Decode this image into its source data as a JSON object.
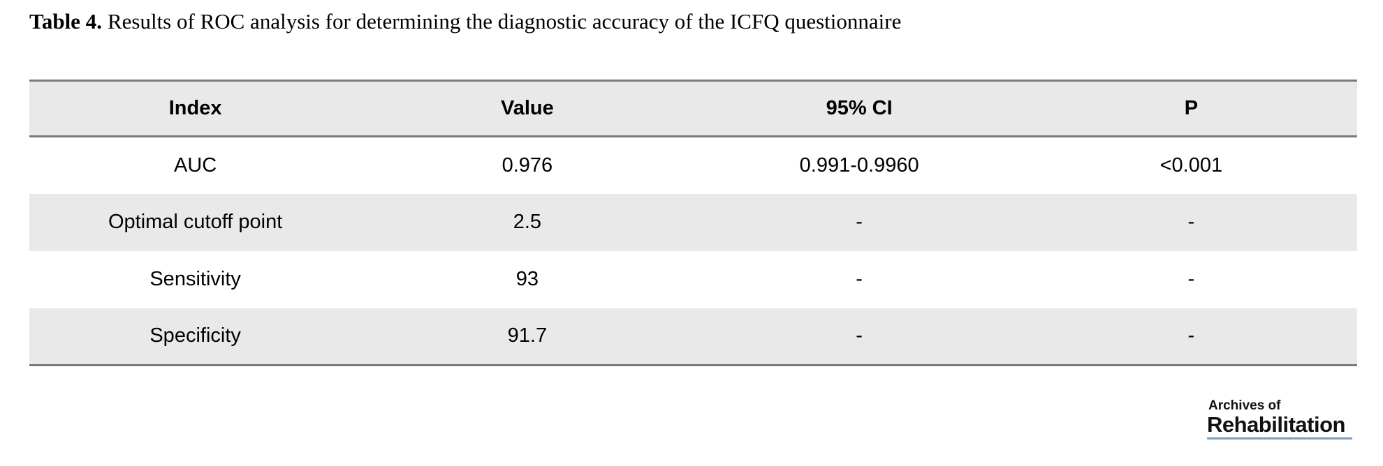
{
  "caption": {
    "label": "Table 4.",
    "text": "Results of ROC analysis for determining the diagnostic accuracy of the ICFQ questionnaire"
  },
  "table": {
    "headers": [
      "Index",
      "Value",
      "95% CI",
      "P"
    ],
    "rows": [
      [
        "AUC",
        "0.976",
        "0.991-0.9960",
        "<0.001"
      ],
      [
        "Optimal cutoff point",
        "2.5",
        "-",
        "-"
      ],
      [
        "Sensitivity",
        "93",
        "-",
        "-"
      ],
      [
        "Specificity",
        "91.7",
        "-",
        "-"
      ]
    ]
  },
  "chart_data": {
    "type": "table",
    "title": "Table 4. Results of ROC analysis for determining the diagnostic accuracy of the ICFQ questionnaire",
    "columns": [
      "Index",
      "Value",
      "95% CI",
      "P"
    ],
    "rows": [
      {
        "Index": "AUC",
        "Value": 0.976,
        "95% CI": "0.991-0.9960",
        "P": "<0.001"
      },
      {
        "Index": "Optimal cutoff point",
        "Value": 2.5,
        "95% CI": "-",
        "P": "-"
      },
      {
        "Index": "Sensitivity",
        "Value": 93,
        "95% CI": "-",
        "P": "-"
      },
      {
        "Index": "Specificity",
        "Value": 91.7,
        "95% CI": "-",
        "P": "-"
      }
    ]
  },
  "logo": {
    "line1": "Archives of",
    "line2": "Rehabilitation"
  },
  "colors": {
    "row_shade": "#e9e9e9",
    "table_rule": "#7a7a7a",
    "logo_underline": "#7f9db9"
  }
}
